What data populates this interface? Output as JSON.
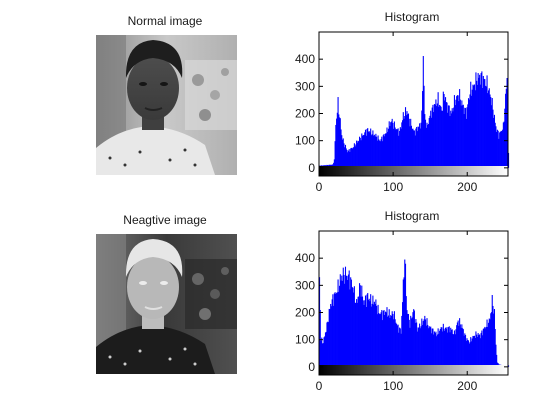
{
  "figure": {
    "panels": [
      {
        "title": "Normal image",
        "content": "grayscale portrait photo"
      },
      {
        "title": "Neagtive image",
        "content": "inverted grayscale portrait photo"
      }
    ]
  },
  "chart_data": [
    {
      "type": "bar",
      "title": "Histogram",
      "xlabel": "",
      "ylabel": "",
      "xlim": [
        0,
        255
      ],
      "ylim": [
        -30,
        500
      ],
      "xticks": [
        0,
        100,
        200
      ],
      "yticks": [
        0,
        100,
        200,
        300,
        400
      ],
      "bar_color": "#0000ff",
      "colorbar": "black-to-white",
      "grid": false,
      "legend": "none",
      "knots": [
        [
          0,
          8
        ],
        [
          10,
          10
        ],
        [
          18,
          12
        ],
        [
          20,
          30
        ],
        [
          22,
          160
        ],
        [
          25,
          235
        ],
        [
          28,
          170
        ],
        [
          30,
          120
        ],
        [
          33,
          90
        ],
        [
          38,
          60
        ],
        [
          45,
          75
        ],
        [
          55,
          110
        ],
        [
          65,
          140
        ],
        [
          75,
          120
        ],
        [
          82,
          100
        ],
        [
          90,
          130
        ],
        [
          97,
          175
        ],
        [
          102,
          150
        ],
        [
          108,
          130
        ],
        [
          113,
          190
        ],
        [
          118,
          210
        ],
        [
          122,
          170
        ],
        [
          128,
          130
        ],
        [
          133,
          150
        ],
        [
          136,
          155
        ],
        [
          138,
          190
        ],
        [
          140,
          415
        ],
        [
          142,
          190
        ],
        [
          145,
          150
        ],
        [
          150,
          200
        ],
        [
          155,
          230
        ],
        [
          160,
          250
        ],
        [
          165,
          210
        ],
        [
          168,
          275
        ],
        [
          172,
          230
        ],
        [
          178,
          200
        ],
        [
          183,
          250
        ],
        [
          188,
          270
        ],
        [
          193,
          230
        ],
        [
          198,
          200
        ],
        [
          203,
          280
        ],
        [
          208,
          300
        ],
        [
          213,
          330
        ],
        [
          218,
          335
        ],
        [
          223,
          320
        ],
        [
          227,
          300
        ],
        [
          232,
          250
        ],
        [
          238,
          150
        ],
        [
          242,
          120
        ],
        [
          248,
          150
        ],
        [
          253,
          330
        ],
        [
          255,
          50
        ]
      ]
    },
    {
      "type": "bar",
      "title": "Histogram",
      "xlabel": "",
      "ylabel": "",
      "xlim": [
        0,
        255
      ],
      "ylim": [
        -30,
        500
      ],
      "xticks": [
        0,
        100,
        200
      ],
      "yticks": [
        0,
        100,
        200,
        300,
        400
      ],
      "bar_color": "#0000ff",
      "colorbar": "black-to-white",
      "grid": false,
      "legend": "none",
      "knots": [
        [
          0,
          330
        ],
        [
          2,
          100
        ],
        [
          5,
          90
        ],
        [
          10,
          150
        ],
        [
          15,
          230
        ],
        [
          20,
          260
        ],
        [
          25,
          290
        ],
        [
          30,
          335
        ],
        [
          35,
          340
        ],
        [
          40,
          330
        ],
        [
          45,
          295
        ],
        [
          50,
          230
        ],
        [
          55,
          300
        ],
        [
          60,
          235
        ],
        [
          65,
          260
        ],
        [
          70,
          240
        ],
        [
          75,
          240
        ],
        [
          80,
          200
        ],
        [
          85,
          195
        ],
        [
          90,
          205
        ],
        [
          95,
          190
        ],
        [
          100,
          195
        ],
        [
          105,
          150
        ],
        [
          110,
          130
        ],
        [
          115,
          410
        ],
        [
          118,
          210
        ],
        [
          122,
          160
        ],
        [
          127,
          210
        ],
        [
          132,
          140
        ],
        [
          137,
          155
        ],
        [
          142,
          180
        ],
        [
          147,
          150
        ],
        [
          152,
          135
        ],
        [
          158,
          120
        ],
        [
          165,
          145
        ],
        [
          170,
          140
        ],
        [
          177,
          140
        ],
        [
          182,
          120
        ],
        [
          187,
          170
        ],
        [
          192,
          150
        ],
        [
          197,
          110
        ],
        [
          202,
          90
        ],
        [
          207,
          110
        ],
        [
          212,
          120
        ],
        [
          217,
          115
        ],
        [
          222,
          140
        ],
        [
          227,
          160
        ],
        [
          230,
          175
        ],
        [
          233,
          240
        ],
        [
          236,
          200
        ],
        [
          238,
          80
        ],
        [
          240,
          15
        ],
        [
          243,
          8
        ],
        [
          250,
          5
        ],
        [
          255,
          5
        ]
      ]
    }
  ]
}
